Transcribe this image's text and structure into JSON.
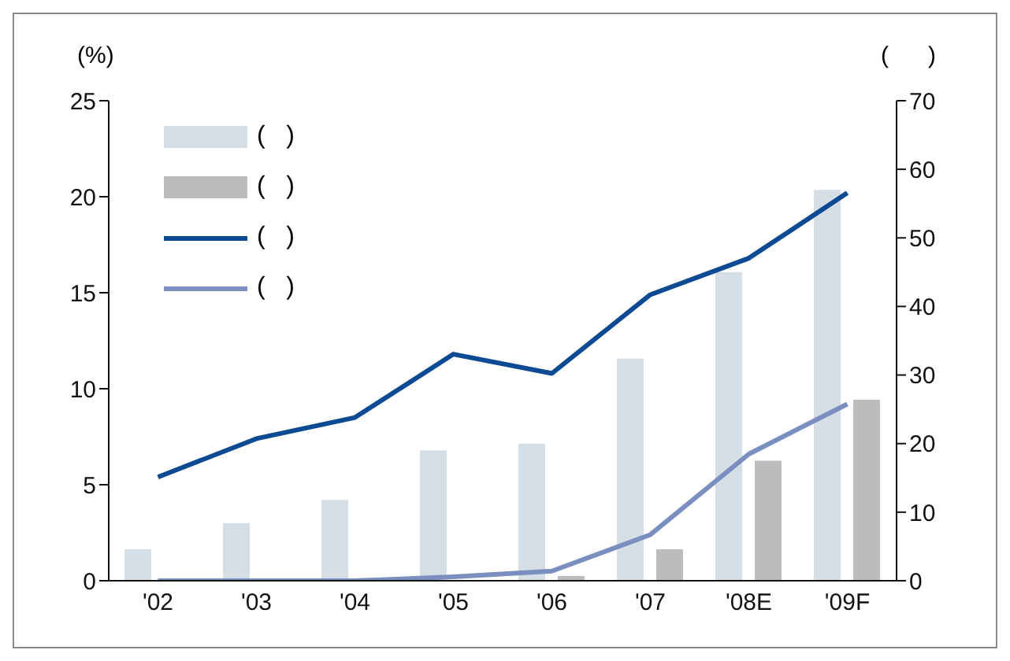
{
  "chart_data": {
    "type": "bar",
    "ylabel": "(%)",
    "y2label": "(      )",
    "categories": [
      "'02",
      "'03",
      "'04",
      "'05",
      "'06",
      "'07",
      "'08E",
      "'09F"
    ],
    "series": [
      {
        "name": "(   )",
        "axis": "y2",
        "color": "#d5dde5",
        "values": [
          4.6,
          8.4,
          11.8,
          19,
          20,
          32.4,
          45,
          57
        ]
      },
      {
        "name": "(   )",
        "axis": "y2",
        "color": "#bcbcbc",
        "values": [
          null,
          null,
          null,
          null,
          0.7,
          4.6,
          17.5,
          26.4
        ]
      },
      {
        "name": "(   )",
        "type": "line",
        "color": "#0d4a94",
        "values": [
          5.4,
          7.4,
          8.5,
          11.8,
          10.8,
          14.9,
          16.8,
          20.2
        ]
      },
      {
        "name": "(   )",
        "type": "line",
        "color": "#7a8fc0",
        "values": [
          0,
          0,
          0,
          0.2,
          0.5,
          2.4,
          6.6,
          9.2
        ]
      }
    ],
    "ylim": [
      0,
      25
    ],
    "yticks": [
      0,
      5,
      10,
      15,
      20,
      25
    ],
    "y2lim": [
      0,
      70
    ],
    "y2ticks": [
      0,
      10,
      20,
      30,
      40,
      50,
      60,
      70
    ],
    "legend": "top left",
    "line_style": "solid",
    "marker": "none"
  }
}
